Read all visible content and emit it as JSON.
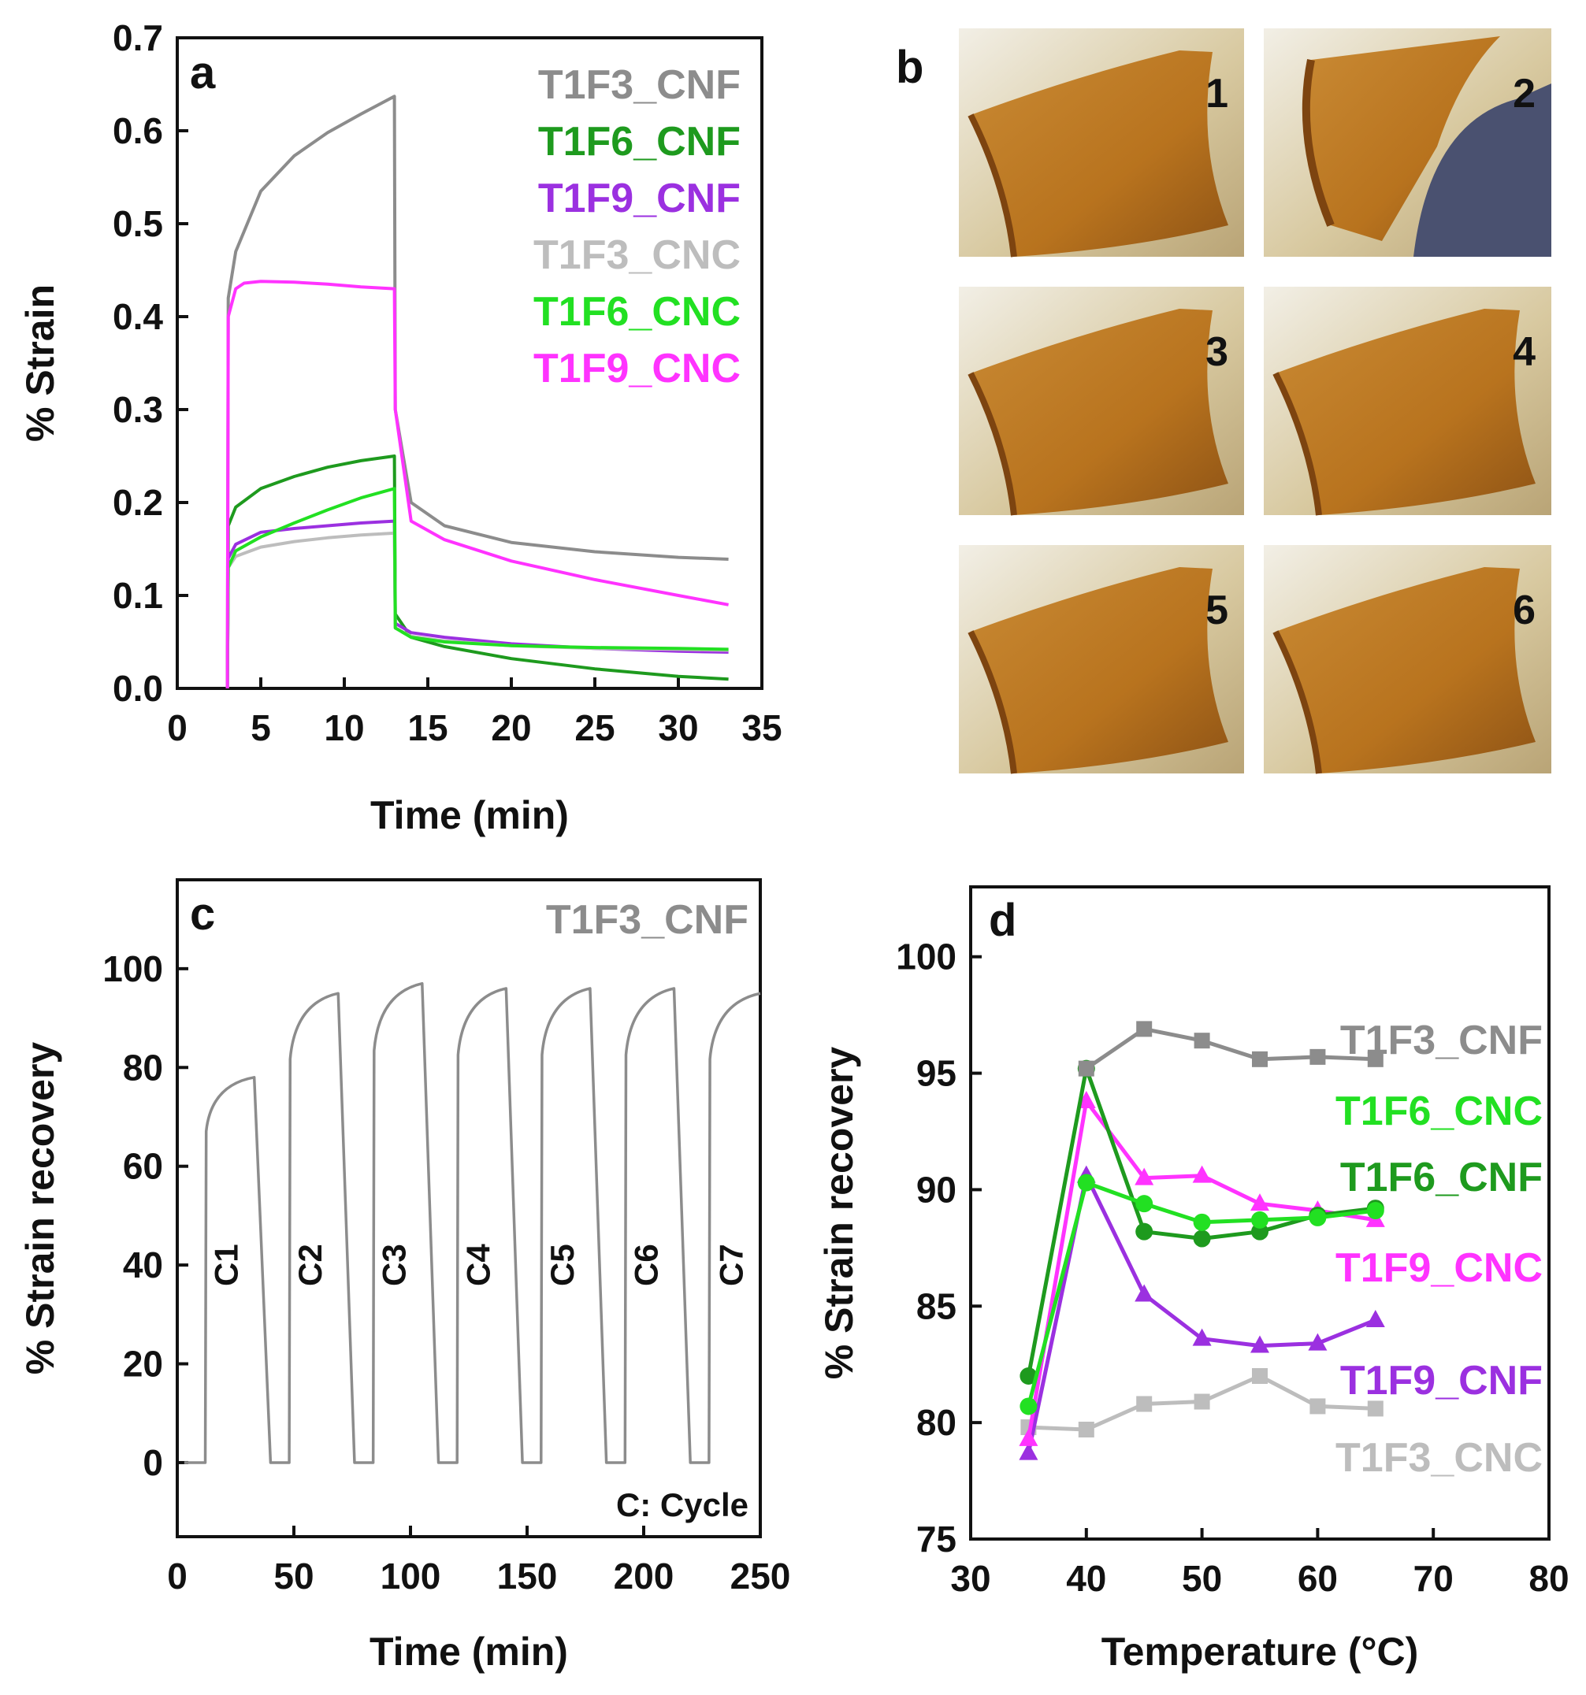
{
  "chart_data": [
    {
      "panel": "a",
      "type": "line",
      "xlabel": "Time (min)",
      "ylabel": "% Strain",
      "xlim": [
        0,
        35
      ],
      "ylim": [
        0.0,
        0.7
      ],
      "xticks": [
        "0",
        "5",
        "10",
        "15",
        "20",
        "25",
        "30",
        "35"
      ],
      "yticks": [
        "0.0",
        "0.1",
        "0.2",
        "0.3",
        "0.4",
        "0.5",
        "0.6",
        "0.7"
      ],
      "legend_position": "top-right",
      "series": [
        {
          "name": "T1F3_CNF",
          "color": "#8c8c8c",
          "x": [
            3,
            3.05,
            3.5,
            5,
            7,
            9,
            11,
            13,
            13.05,
            14,
            16,
            20,
            25,
            30,
            33
          ],
          "y": [
            0,
            0.42,
            0.47,
            0.535,
            0.573,
            0.598,
            0.618,
            0.637,
            0.3,
            0.2,
            0.175,
            0.157,
            0.147,
            0.141,
            0.139
          ]
        },
        {
          "name": "T1F6_CNF",
          "color": "#1e9a1e",
          "x": [
            3,
            3.05,
            3.5,
            5,
            7,
            9,
            11,
            13,
            13.05,
            14,
            16,
            20,
            25,
            30,
            33
          ],
          "y": [
            0,
            0.175,
            0.195,
            0.215,
            0.228,
            0.238,
            0.245,
            0.25,
            0.08,
            0.055,
            0.045,
            0.032,
            0.021,
            0.013,
            0.01
          ]
        },
        {
          "name": "T1F9_CNF",
          "color": "#9b30e0",
          "x": [
            3,
            3.05,
            3.5,
            5,
            7,
            9,
            11,
            13,
            13.05,
            14,
            16,
            20,
            25,
            30,
            33
          ],
          "y": [
            0,
            0.14,
            0.155,
            0.168,
            0.172,
            0.175,
            0.178,
            0.18,
            0.07,
            0.06,
            0.055,
            0.048,
            0.043,
            0.04,
            0.039
          ]
        },
        {
          "name": "T1F3_CNC",
          "color": "#bdbdbd",
          "x": [
            3,
            3.05,
            3.5,
            5,
            7,
            9,
            11,
            13,
            13.05,
            14,
            16,
            20,
            25,
            30,
            33
          ],
          "y": [
            0,
            0.13,
            0.142,
            0.152,
            0.158,
            0.162,
            0.165,
            0.167,
            0.065,
            0.056,
            0.051,
            0.046,
            0.043,
            0.042,
            0.041
          ]
        },
        {
          "name": "T1F6_CNC",
          "color": "#22e022",
          "x": [
            3,
            3.05,
            3.5,
            5,
            7,
            9,
            11,
            13,
            13.05,
            14,
            16,
            20,
            25,
            30,
            33
          ],
          "y": [
            0,
            0.13,
            0.148,
            0.163,
            0.178,
            0.192,
            0.205,
            0.215,
            0.065,
            0.055,
            0.05,
            0.046,
            0.044,
            0.043,
            0.042
          ]
        },
        {
          "name": "T1F9_CNC",
          "color": "#ff33ff",
          "x": [
            3,
            3.05,
            3.5,
            4,
            5,
            7,
            9,
            11,
            13,
            13.05,
            14,
            16,
            20,
            25,
            30,
            33
          ],
          "y": [
            0,
            0.4,
            0.43,
            0.436,
            0.438,
            0.437,
            0.435,
            0.432,
            0.43,
            0.3,
            0.18,
            0.16,
            0.137,
            0.117,
            0.1,
            0.09
          ]
        }
      ]
    },
    {
      "panel": "b",
      "type": "image",
      "photo_labels": [
        "1",
        "2",
        "3",
        "4",
        "5",
        "6"
      ],
      "colors": {
        "film": "#b8731e",
        "film_dark": "#7d4410",
        "glove": "#4a5170",
        "dish": "#d8c9a0"
      }
    },
    {
      "panel": "c",
      "type": "line",
      "xlabel": "Time (min)",
      "ylabel": "% Strain recovery",
      "xlim": [
        0,
        250
      ],
      "ylim": [
        -15,
        118
      ],
      "xticks": [
        "0",
        "50",
        "100",
        "150",
        "200",
        "250"
      ],
      "yticks": [
        "0",
        "20",
        "40",
        "60",
        "80",
        "100"
      ],
      "series_label": "T1F3_CNF",
      "note": "C: Cycle",
      "color": "#8c8c8c",
      "cycles": [
        {
          "label": "C1",
          "start": 12,
          "plateau": 78,
          "end": 33,
          "zero_at": 40
        },
        {
          "label": "C2",
          "start": 48,
          "plateau": 95,
          "end": 69,
          "zero_at": 76
        },
        {
          "label": "C3",
          "start": 84,
          "plateau": 97,
          "end": 105,
          "zero_at": 112
        },
        {
          "label": "C4",
          "start": 120,
          "plateau": 96,
          "end": 141,
          "zero_at": 148
        },
        {
          "label": "C5",
          "start": 156,
          "plateau": 96,
          "end": 177,
          "zero_at": 184
        },
        {
          "label": "C6",
          "start": 192,
          "plateau": 96,
          "end": 213,
          "zero_at": 220
        },
        {
          "label": "C7",
          "start": 228,
          "plateau": 95,
          "end": 250,
          "zero_at": null
        }
      ]
    },
    {
      "panel": "d",
      "type": "line",
      "xlabel": "Temperature (°C)",
      "ylabel": "% Strain recovery",
      "xlim": [
        30,
        80
      ],
      "ylim": [
        75,
        103
      ],
      "xticks": [
        "30",
        "40",
        "50",
        "60",
        "70",
        "80"
      ],
      "yticks": [
        "75",
        "80",
        "85",
        "90",
        "95",
        "100"
      ],
      "x": [
        35,
        40,
        45,
        50,
        55,
        60,
        65
      ],
      "series": [
        {
          "name": "T1F3_CNF",
          "color": "#8c8c8c",
          "marker": "square",
          "values": [
            null,
            95.2,
            96.9,
            96.4,
            95.6,
            95.7,
            95.6
          ]
        },
        {
          "name": "T1F6_CNC",
          "color": "#22e022",
          "marker": "circle",
          "values": [
            80.7,
            90.3,
            89.4,
            88.6,
            88.7,
            88.8,
            89.1
          ]
        },
        {
          "name": "T1F6_CNF",
          "color": "#1e9a1e",
          "marker": "circle",
          "values": [
            82.0,
            95.2,
            88.2,
            87.9,
            88.2,
            88.9,
            89.2
          ]
        },
        {
          "name": "T1F9_CNC",
          "color": "#ff33ff",
          "marker": "triangle",
          "values": [
            79.3,
            93.8,
            90.5,
            90.6,
            89.4,
            89.1,
            88.7
          ]
        },
        {
          "name": "T1F9_CNF",
          "color": "#9b30e0",
          "marker": "triangle",
          "values": [
            78.7,
            90.6,
            85.5,
            83.6,
            83.3,
            83.4,
            84.4
          ]
        },
        {
          "name": "T1F3_CNC",
          "color": "#bdbdbd",
          "marker": "square",
          "values": [
            79.8,
            79.7,
            80.8,
            80.9,
            82.0,
            80.7,
            80.6
          ]
        }
      ]
    }
  ]
}
